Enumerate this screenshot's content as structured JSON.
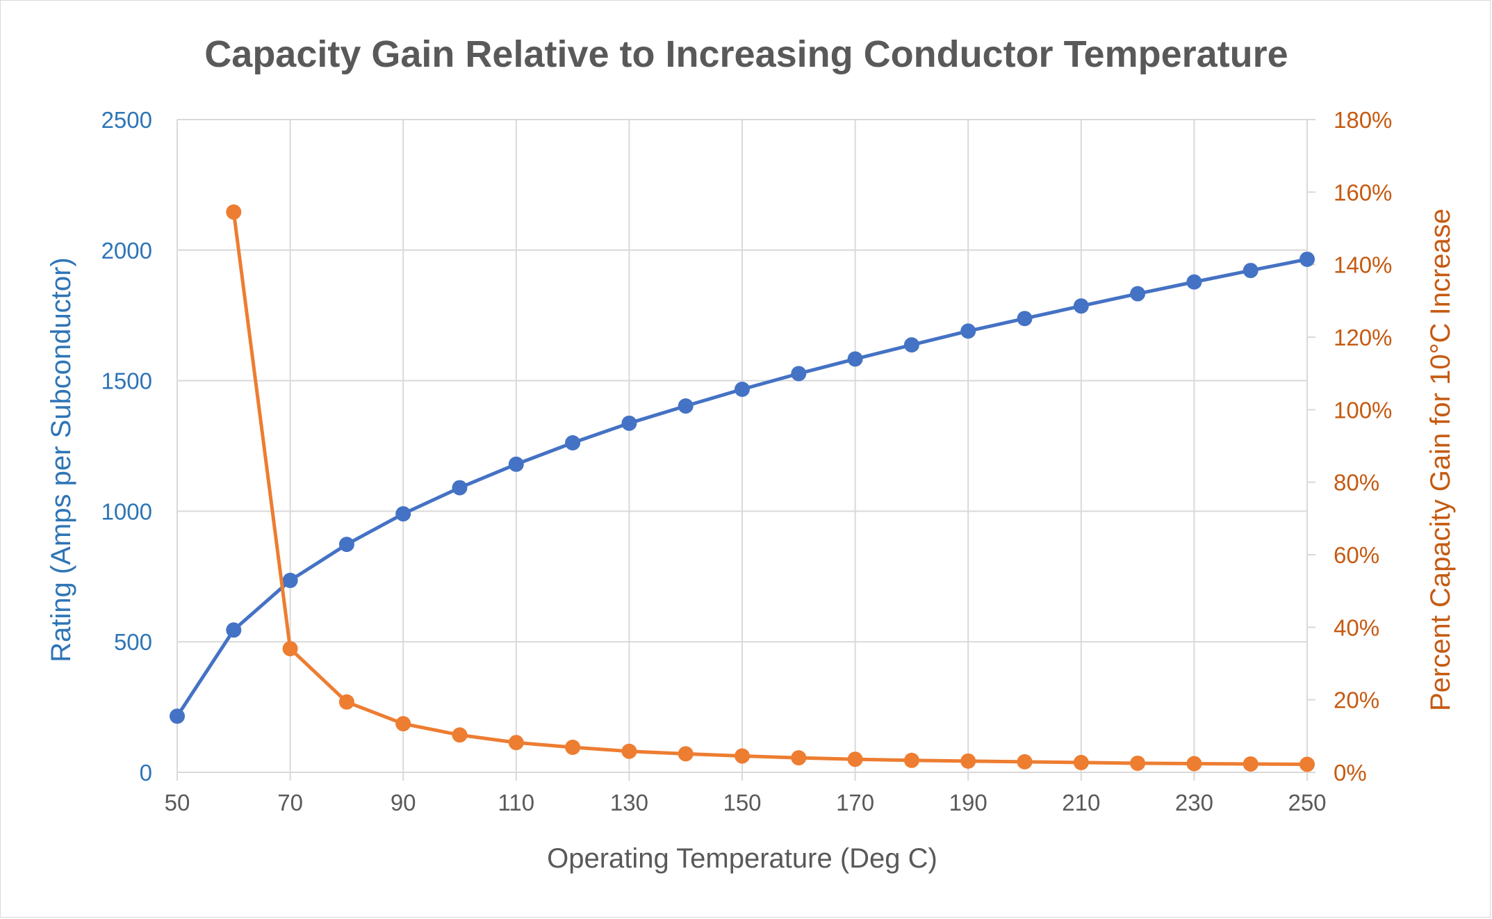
{
  "chart_data": {
    "type": "line",
    "title": "Capacity Gain Relative to Increasing Conductor Temperature",
    "xlabel": "Operating Temperature (Deg C)",
    "ylabel_left": "Rating (Amps per Subconductor)",
    "ylabel_right": "Percent Capacity Gain for 10°C Increase",
    "x": [
      50,
      60,
      70,
      80,
      90,
      100,
      110,
      120,
      130,
      140,
      150,
      160,
      170,
      180,
      190,
      200,
      210,
      220,
      230,
      240,
      250
    ],
    "xlim": [
      50,
      250
    ],
    "x_ticks": [
      "50",
      "70",
      "90",
      "110",
      "130",
      "150",
      "170",
      "190",
      "210",
      "230",
      "250"
    ],
    "ylim_left": [
      0,
      2500
    ],
    "y_ticks_left": [
      "0",
      "500",
      "1000",
      "1500",
      "2000",
      "2500"
    ],
    "ylim_right": [
      0,
      1.8
    ],
    "y_ticks_right": [
      "0%",
      "20%",
      "40%",
      "60%",
      "80%",
      "100%",
      "120%",
      "140%",
      "160%",
      "180%"
    ],
    "grid": true,
    "series": [
      {
        "axis": "left",
        "color": "#4472c4",
        "values": [
          215,
          545,
          735,
          873,
          990,
          1090,
          1180,
          1262,
          1337,
          1403,
          1467,
          1527,
          1583,
          1637,
          1690,
          1738,
          1786,
          1833,
          1878,
          1922,
          1965
        ]
      },
      {
        "axis": "right",
        "color": "#ed7d31",
        "x": [
          60,
          70,
          80,
          90,
          100,
          110,
          120,
          130,
          140,
          150,
          160,
          170,
          180,
          190,
          200,
          210,
          220,
          230,
          240,
          250
        ],
        "values": [
          1.545,
          0.341,
          0.194,
          0.134,
          0.103,
          0.082,
          0.069,
          0.058,
          0.051,
          0.045,
          0.04,
          0.036,
          0.033,
          0.031,
          0.029,
          0.027,
          0.025,
          0.024,
          0.023,
          0.022
        ]
      }
    ]
  },
  "colors": {
    "left_axis_text": "#2e75b6",
    "right_axis_text": "#c55a11",
    "gridline": "#d9d9d9",
    "neutral_text": "#595959"
  }
}
